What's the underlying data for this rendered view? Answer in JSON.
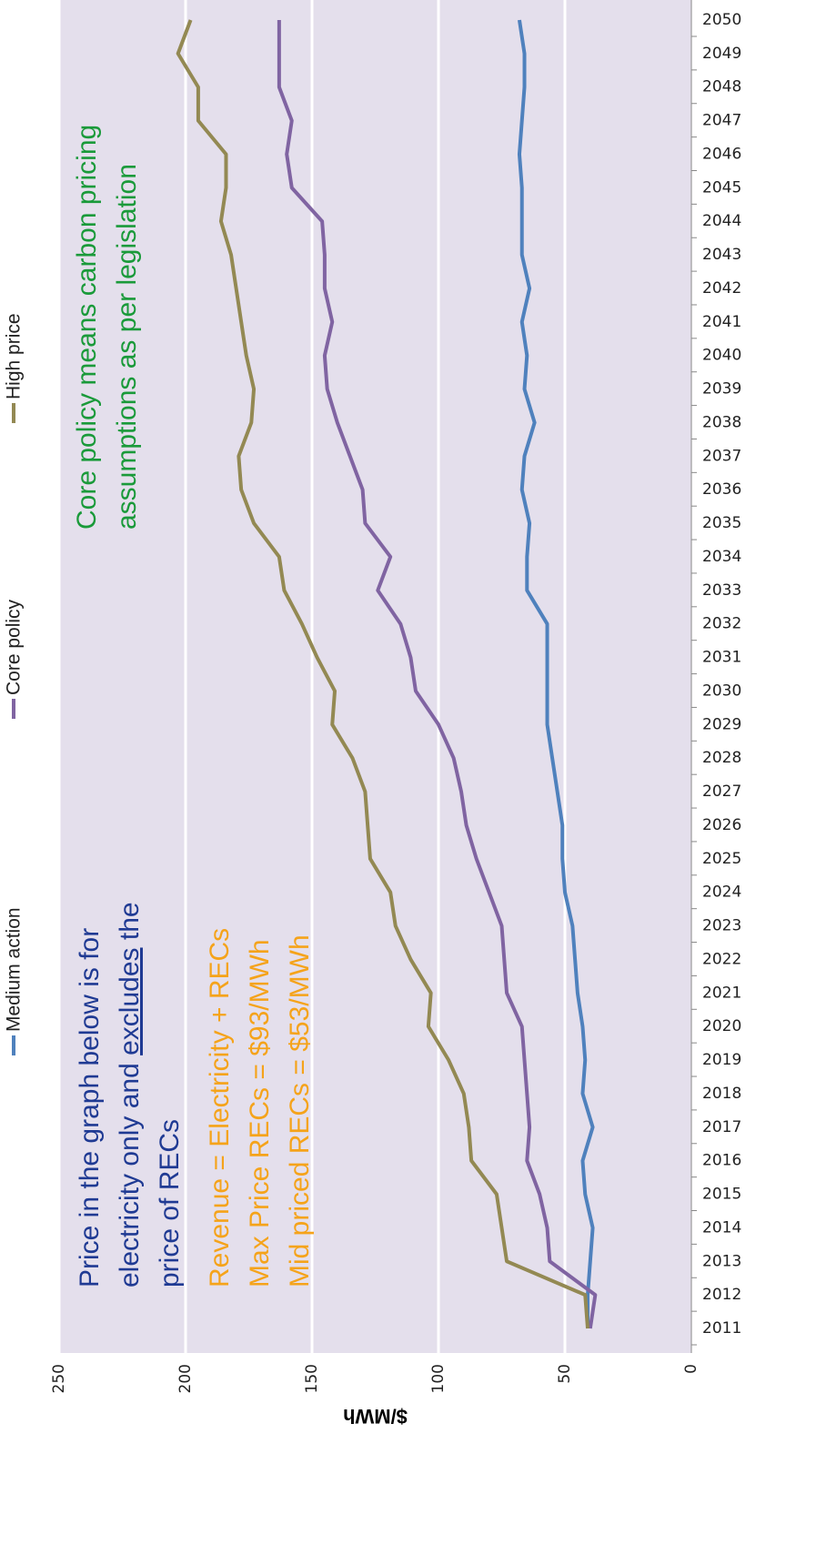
{
  "chart_data": {
    "type": "line",
    "y_label": "$/MWh",
    "categories": [
      "2011",
      "2012",
      "2013",
      "2014",
      "2015",
      "2016",
      "2017",
      "2018",
      "2019",
      "2020",
      "2021",
      "2022",
      "2023",
      "2024",
      "2025",
      "2026",
      "2027",
      "2028",
      "2029",
      "2030",
      "2031",
      "2032",
      "2033",
      "2034",
      "2035",
      "2036",
      "2037",
      "2038",
      "2039",
      "2040",
      "2041",
      "2042",
      "2043",
      "2044",
      "2045",
      "2046",
      "2047",
      "2048",
      "2049",
      "2050"
    ],
    "series": [
      {
        "name": "Medium action",
        "color": "#4f81bd",
        "values": [
          41,
          41,
          40,
          39,
          42,
          43,
          39,
          43,
          42,
          43,
          45,
          46,
          47,
          50,
          51,
          51,
          53,
          55,
          57,
          57,
          57,
          57,
          65,
          65,
          64,
          67,
          66,
          62,
          66,
          65,
          67,
          64,
          67,
          67,
          67,
          68,
          67,
          66,
          66,
          68
        ]
      },
      {
        "name": "Core policy",
        "color": "#8064a2",
        "values": [
          40,
          38,
          56,
          57,
          60,
          65,
          64,
          65,
          66,
          67,
          73,
          74,
          75,
          80,
          85,
          89,
          91,
          94,
          100,
          109,
          111,
          115,
          124,
          119,
          129,
          130,
          135,
          140,
          144,
          145,
          142,
          145,
          145,
          146,
          158,
          160,
          158,
          163,
          163,
          163
        ]
      },
      {
        "name": "High price",
        "color": "#938953",
        "values": [
          41,
          42,
          73,
          75,
          77,
          87,
          88,
          90,
          96,
          104,
          103,
          111,
          117,
          119,
          127,
          128,
          129,
          134,
          142,
          141,
          148,
          154,
          161,
          163,
          173,
          178,
          179,
          174,
          173,
          176,
          178,
          180,
          182,
          186,
          184,
          184,
          195,
          195,
          203,
          198
        ]
      }
    ],
    "ylim": [
      0,
      250
    ],
    "yticks": [
      0,
      50,
      100,
      150,
      200,
      250
    ],
    "grid": true,
    "annotations": [
      {
        "color": "#1f3a93",
        "lines": [
          [
            "Price in the graph below is for"
          ],
          [
            "electricity only and ",
            "excludes",
            " the"
          ],
          [
            "price of RECs"
          ]
        ]
      },
      {
        "color": "#f5a31a",
        "lines": [
          [
            "Revenue = Electricity + RECs"
          ],
          [
            "Max Price RECs = $93/MWh"
          ],
          [
            "Mid priced RECs = $53/MWh"
          ]
        ]
      },
      {
        "color": "#1a9a3a",
        "lines": [
          [
            "Core policy means carbon pricing"
          ],
          [
            "assumptions as per legislation"
          ]
        ]
      }
    ]
  }
}
